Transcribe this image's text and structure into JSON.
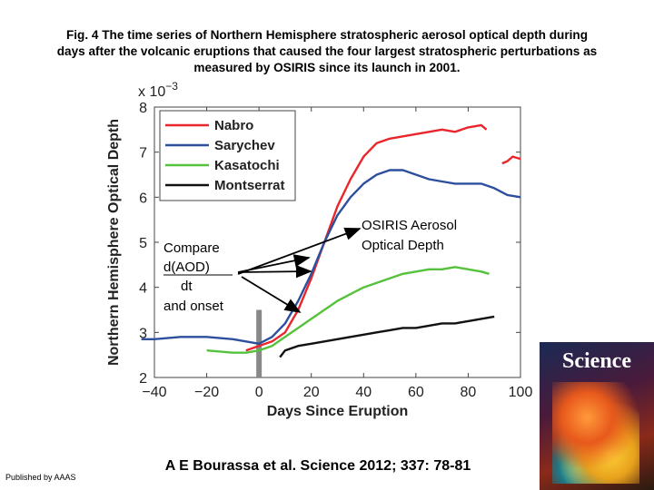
{
  "figure": {
    "title_lines": [
      "Fig. 4 The time series of Northern Hemisphere stratospheric aerosol optical depth during",
      "days after the volcanic eruptions that caused the four largest stratospheric perturbations as",
      "measured by OSIRIS since its launch in 2001."
    ],
    "citation": "A E Bourassa et al. Science 2012; 337: 78-81",
    "publisher": "Published by AAAS",
    "cover_title": "Science"
  },
  "annotations": {
    "left_lines": [
      "Compare",
      "d(AOD)",
      "dt",
      "and onset"
    ],
    "right_lines": [
      "OSIRIS Aerosol",
      "Optical Depth"
    ]
  },
  "colors": {
    "Nabro": "#e8262b",
    "Sarychev": "#2c4f9e",
    "Kasatochi": "#55c23c",
    "Montserrat": "#111111",
    "onset_bar": "#888888"
  },
  "chart_data": {
    "type": "line",
    "title": "",
    "xlabel": "Days Since Eruption",
    "ylabel": "Northern Hemisphere Optical Depth",
    "y_multiplier": "x 10^-3",
    "xlim": [
      -40,
      100
    ],
    "ylim": [
      2,
      8
    ],
    "x_ticks": [
      -40,
      -20,
      0,
      20,
      40,
      60,
      80,
      100
    ],
    "y_ticks": [
      2,
      3,
      4,
      5,
      6,
      7,
      8
    ],
    "legend": "top-left",
    "grid": false,
    "onset_marker_x": 0,
    "series": [
      {
        "name": "Nabro",
        "x": [
          -5,
          0,
          5,
          10,
          15,
          20,
          25,
          30,
          35,
          40,
          45,
          50,
          55,
          60,
          65,
          70,
          75,
          80,
          85,
          87
        ],
        "y": [
          2.6,
          2.7,
          2.8,
          3.0,
          3.5,
          4.2,
          5.0,
          5.8,
          6.4,
          6.9,
          7.2,
          7.3,
          7.35,
          7.4,
          7.45,
          7.5,
          7.45,
          7.55,
          7.6,
          7.5
        ]
      },
      {
        "name": "Nabro",
        "x": [
          93,
          95,
          97,
          100
        ],
        "y": [
          6.75,
          6.8,
          6.9,
          6.85
        ]
      },
      {
        "name": "Sarychev",
        "x": [
          -45,
          -40,
          -30,
          -20,
          -10,
          -5,
          0,
          5,
          10,
          15,
          20,
          25,
          30,
          35,
          40,
          45,
          50,
          55,
          60,
          65,
          70,
          75,
          80,
          85,
          90,
          95,
          100
        ],
        "y": [
          2.85,
          2.85,
          2.9,
          2.9,
          2.85,
          2.8,
          2.75,
          2.9,
          3.2,
          3.7,
          4.3,
          5.0,
          5.6,
          6.0,
          6.3,
          6.5,
          6.6,
          6.6,
          6.5,
          6.4,
          6.35,
          6.3,
          6.3,
          6.3,
          6.2,
          6.05,
          6.0
        ]
      },
      {
        "name": "Kasatochi",
        "x": [
          -20,
          -10,
          -5,
          0,
          5,
          10,
          15,
          20,
          25,
          30,
          35,
          40,
          45,
          50,
          55,
          60,
          65,
          70,
          75,
          80,
          85,
          88
        ],
        "y": [
          2.6,
          2.55,
          2.55,
          2.6,
          2.7,
          2.9,
          3.1,
          3.3,
          3.5,
          3.7,
          3.85,
          4.0,
          4.1,
          4.2,
          4.3,
          4.35,
          4.4,
          4.4,
          4.45,
          4.4,
          4.35,
          4.3
        ]
      },
      {
        "name": "Montserrat",
        "x": [
          8,
          10,
          15,
          20,
          25,
          30,
          35,
          40,
          45,
          50,
          55,
          60,
          65,
          70,
          75,
          80,
          85,
          90
        ],
        "y": [
          2.45,
          2.6,
          2.7,
          2.75,
          2.8,
          2.85,
          2.9,
          2.95,
          3.0,
          3.05,
          3.1,
          3.1,
          3.15,
          3.2,
          3.2,
          3.25,
          3.3,
          3.35
        ]
      }
    ]
  }
}
